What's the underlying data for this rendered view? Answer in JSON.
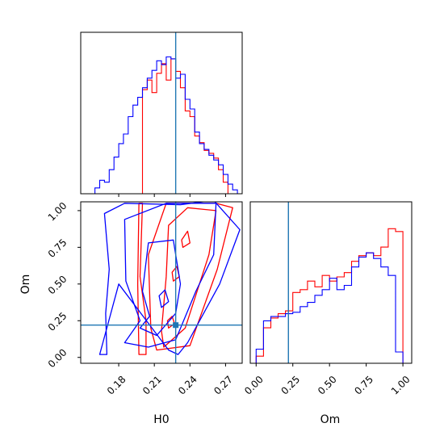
{
  "chart_data": {
    "type": "corner",
    "parameters": [
      "H0",
      "Om"
    ],
    "truth": {
      "H0": 0.228,
      "Om": 0.22
    },
    "colors": {
      "series_a": "#ff0000",
      "series_b": "#0000ff",
      "truth": "#1f77b4"
    },
    "series": [
      {
        "color": "#ff0000",
        "hist_H0": {
          "edges": [
            0.2,
            0.204,
            0.208,
            0.212,
            0.216,
            0.22,
            0.224,
            0.228,
            0.232,
            0.236,
            0.24,
            0.244,
            0.248,
            0.252,
            0.256,
            0.26,
            0.264,
            0.268,
            0.272
          ],
          "counts": [
            108,
            118,
            105,
            125,
            135,
            118,
            140,
            127,
            110,
            86,
            80,
            60,
            53,
            45,
            42,
            37,
            25,
            12
          ]
        },
        "hist_Om": {
          "edges": [
            0.0,
            0.05,
            0.1,
            0.15,
            0.2,
            0.25,
            0.3,
            0.35,
            0.4,
            0.45,
            0.5,
            0.55,
            0.6,
            0.65,
            0.7,
            0.75,
            0.8,
            0.85,
            0.9,
            0.95,
            1.0
          ],
          "counts": [
            5,
            25,
            32,
            35,
            37,
            50,
            52,
            58,
            54,
            62,
            58,
            61,
            64,
            72,
            76,
            78,
            76,
            82,
            95,
            93
          ]
        },
        "contours": [
          [
            [
              0.197,
              0.02
            ],
            [
              0.203,
              0.02
            ],
            [
              0.203,
              0.25
            ],
            [
              0.198,
              0.55
            ],
            [
              0.2,
              1.05
            ],
            [
              0.197,
              1.05
            ],
            [
              0.196,
              0.5
            ]
          ],
          [
            [
              0.212,
              0.05
            ],
            [
              0.24,
              0.08
            ],
            [
              0.263,
              0.6
            ],
            [
              0.276,
              1.02
            ],
            [
              0.262,
              1.05
            ],
            [
              0.22,
              1.05
            ],
            [
              0.205,
              0.7
            ],
            [
              0.207,
              0.2
            ]
          ],
          [
            [
              0.218,
              0.07
            ],
            [
              0.236,
              0.2
            ],
            [
              0.256,
              0.7
            ],
            [
              0.262,
              1.0
            ],
            [
              0.238,
              1.02
            ],
            [
              0.222,
              0.9
            ],
            [
              0.22,
              0.55
            ],
            [
              0.216,
              0.18
            ]
          ],
          [
            [
              0.226,
              0.52
            ],
            [
              0.231,
              0.55
            ],
            [
              0.229,
              0.62
            ],
            [
              0.225,
              0.58
            ]
          ],
          [
            [
              0.234,
              0.75
            ],
            [
              0.24,
              0.78
            ],
            [
              0.238,
              0.86
            ],
            [
              0.233,
              0.8
            ]
          ],
          [
            [
              0.222,
              0.2
            ],
            [
              0.227,
              0.23
            ],
            [
              0.225,
              0.28
            ],
            [
              0.221,
              0.25
            ]
          ]
        ]
      },
      {
        "color": "#0000ff",
        "hist_H0": {
          "edges": [
            0.16,
            0.164,
            0.168,
            0.172,
            0.176,
            0.18,
            0.184,
            0.188,
            0.192,
            0.196,
            0.2,
            0.204,
            0.208,
            0.212,
            0.216,
            0.22,
            0.224,
            0.228,
            0.232,
            0.236,
            0.24,
            0.244,
            0.248,
            0.252,
            0.256,
            0.26,
            0.264,
            0.268,
            0.272,
            0.276,
            0.28
          ],
          "counts": [
            6,
            14,
            12,
            25,
            38,
            52,
            62,
            80,
            92,
            100,
            110,
            120,
            128,
            138,
            134,
            142,
            140,
            120,
            124,
            98,
            88,
            64,
            52,
            46,
            40,
            35,
            30,
            20,
            10,
            4
          ]
        },
        "hist_Om": {
          "edges": [
            0.0,
            0.05,
            0.1,
            0.15,
            0.2,
            0.25,
            0.3,
            0.35,
            0.4,
            0.45,
            0.5,
            0.55,
            0.6,
            0.65,
            0.7,
            0.75,
            0.8,
            0.85,
            0.9,
            0.95,
            1.0
          ],
          "counts": [
            10,
            30,
            33,
            33,
            35,
            36,
            40,
            43,
            48,
            52,
            60,
            52,
            55,
            68,
            75,
            78,
            74,
            68,
            62,
            8
          ]
        },
        "contours": [
          [
            [
              0.164,
              0.02
            ],
            [
              0.17,
              0.02
            ],
            [
              0.169,
              0.3
            ],
            [
              0.172,
              0.6
            ],
            [
              0.168,
              0.98
            ],
            [
              0.185,
              1.05
            ],
            [
              0.232,
              1.04
            ],
            [
              0.26,
              1.07
            ],
            [
              0.282,
              0.87
            ],
            [
              0.265,
              0.5
            ],
            [
              0.238,
              0.1
            ],
            [
              0.23,
              0.02
            ],
            [
              0.222,
              0.05
            ],
            [
              0.18,
              0.5
            ]
          ],
          [
            [
              0.185,
              0.1
            ],
            [
              0.198,
              0.25
            ],
            [
              0.186,
              0.52
            ],
            [
              0.185,
              0.94
            ],
            [
              0.22,
              1.05
            ],
            [
              0.262,
              1.05
            ],
            [
              0.26,
              0.7
            ],
            [
              0.245,
              0.45
            ],
            [
              0.228,
              0.12
            ],
            [
              0.205,
              0.07
            ]
          ],
          [
            [
              0.198,
              0.2
            ],
            [
              0.206,
              0.28
            ],
            [
              0.2,
              0.45
            ],
            [
              0.205,
              0.78
            ],
            [
              0.226,
              0.8
            ],
            [
              0.232,
              0.5
            ],
            [
              0.228,
              0.3
            ],
            [
              0.212,
              0.15
            ]
          ],
          [
            [
              0.216,
              0.34
            ],
            [
              0.222,
              0.38
            ],
            [
              0.219,
              0.46
            ],
            [
              0.214,
              0.42
            ]
          ]
        ]
      }
    ],
    "axes": {
      "H0_range": [
        0.148,
        0.284
      ],
      "Om_range": [
        -0.04,
        1.06
      ],
      "H0_ticks": [
        "0.18",
        "0.21",
        "0.24",
        "0.27"
      ],
      "Om_ticks": [
        "0.00",
        "0.25",
        "0.50",
        "0.75",
        "1.00"
      ],
      "xlabel_left": "H0",
      "xlabel_right": "Om",
      "ylabel": "Om"
    }
  }
}
